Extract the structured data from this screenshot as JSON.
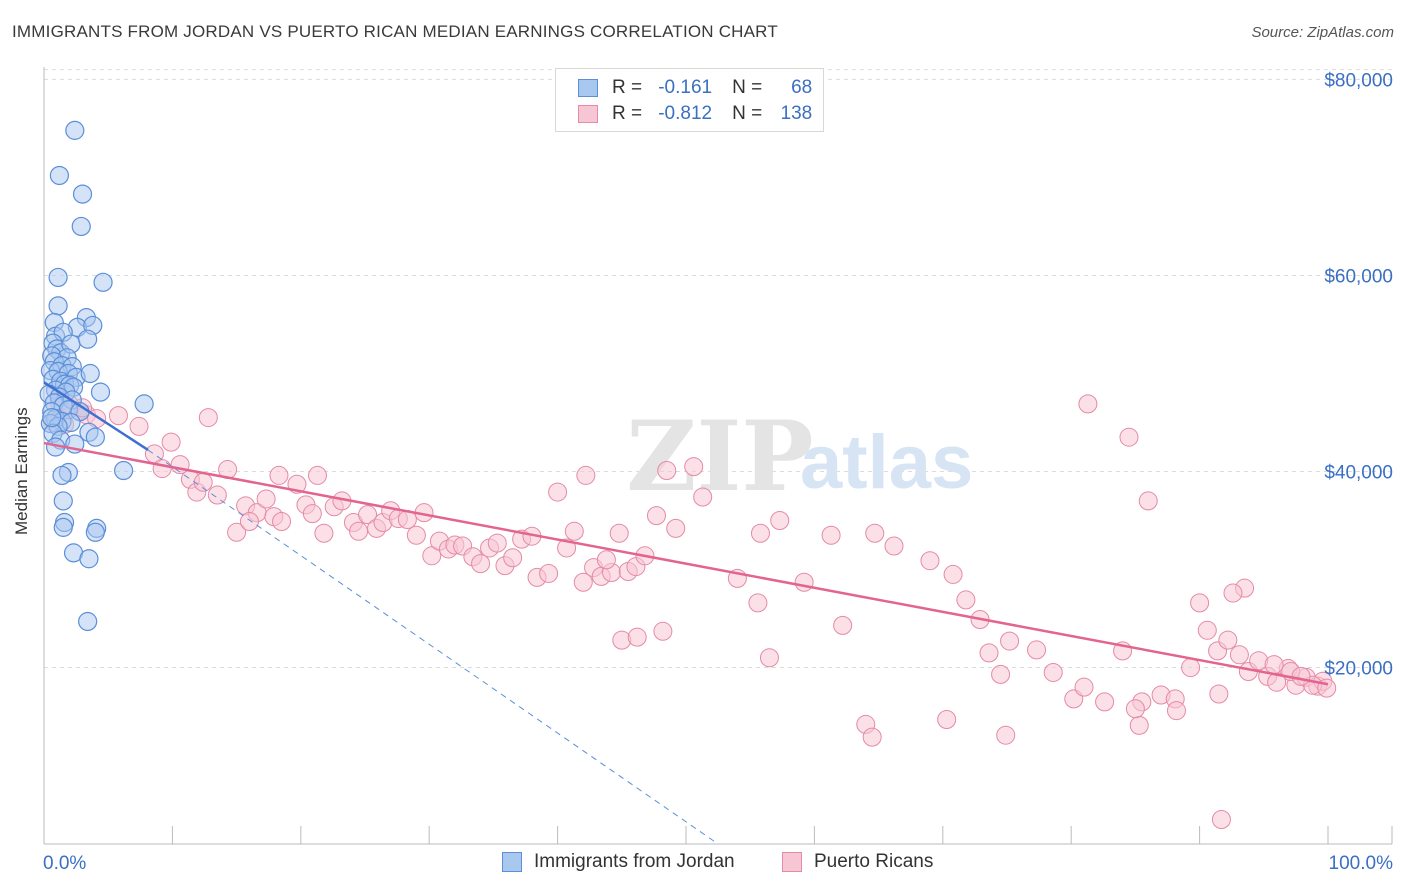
{
  "title": "IMMIGRANTS FROM JORDAN VS PUERTO RICAN MEDIAN EARNINGS CORRELATION CHART",
  "source": "Source: ZipAtlas.com",
  "watermark": {
    "zip": "ZIP",
    "atlas": "atlas"
  },
  "colors": {
    "blue_fill": "#a9c8f0",
    "blue_stroke": "#5b8fd8",
    "blue_line": "#3f6fd0",
    "pink_fill": "#f7c6d5",
    "pink_stroke": "#e58aa7",
    "pink_line": "#e2648f",
    "value_text": "#3a6fc4",
    "grid": "#dcdcdc"
  },
  "legend": {
    "r_label": "R =",
    "n_label": "N =",
    "rows": [
      {
        "series": "Immigrants from Jordan",
        "r": "-0.161",
        "n": "68"
      },
      {
        "series": "Puerto Ricans",
        "r": "-0.812",
        "n": "138"
      }
    ]
  },
  "bottom_legend": [
    "Immigrants from Jordan",
    "Puerto Ricans"
  ],
  "chart_data": {
    "type": "scatter",
    "title": "IMMIGRANTS FROM JORDAN VS PUERTO RICAN MEDIAN EARNINGS CORRELATION CHART",
    "xlabel": "",
    "ylabel": "Median Earnings",
    "xlim": [
      0,
      100
    ],
    "ylim": [
      2000,
      83000
    ],
    "x_tick_labels": [
      "0.0%",
      "100.0%"
    ],
    "y_ticks": [
      {
        "value": 20000,
        "label": "$20,000"
      },
      {
        "value": 40000,
        "label": "$40,000"
      },
      {
        "value": 60000,
        "label": "$60,000"
      },
      {
        "value": 80000,
        "label": "$80,000"
      }
    ],
    "series": [
      {
        "name": "Immigrants from Jordan",
        "color": "blue",
        "trend": {
          "x": [
            0,
            8.1
          ],
          "y": [
            49100,
            42200
          ]
        },
        "trend_extended": {
          "x": [
            8.1,
            52.5
          ],
          "y": [
            42200,
            2000
          ]
        },
        "points": [
          [
            2.4,
            74800
          ],
          [
            1.2,
            70200
          ],
          [
            3.0,
            68300
          ],
          [
            2.9,
            65000
          ],
          [
            1.1,
            59800
          ],
          [
            4.6,
            59300
          ],
          [
            1.1,
            56900
          ],
          [
            3.3,
            55700
          ],
          [
            0.8,
            55200
          ],
          [
            2.6,
            54700
          ],
          [
            3.8,
            54900
          ],
          [
            0.9,
            53800
          ],
          [
            1.5,
            54200
          ],
          [
            0.7,
            53100
          ],
          [
            1.0,
            52500
          ],
          [
            1.3,
            52100
          ],
          [
            2.1,
            53000
          ],
          [
            3.4,
            53500
          ],
          [
            0.6,
            51800
          ],
          [
            1.8,
            51600
          ],
          [
            0.8,
            51200
          ],
          [
            1.4,
            50800
          ],
          [
            2.2,
            50700
          ],
          [
            0.5,
            50300
          ],
          [
            1.1,
            50200
          ],
          [
            1.9,
            50000
          ],
          [
            2.5,
            49600
          ],
          [
            3.6,
            50000
          ],
          [
            0.7,
            49400
          ],
          [
            1.3,
            49200
          ],
          [
            1.6,
            48900
          ],
          [
            2.0,
            48800
          ],
          [
            2.3,
            48600
          ],
          [
            0.9,
            48300
          ],
          [
            1.7,
            48100
          ],
          [
            0.4,
            47900
          ],
          [
            1.2,
            47600
          ],
          [
            4.4,
            48100
          ],
          [
            0.8,
            47000
          ],
          [
            2.2,
            47300
          ],
          [
            1.5,
            46700
          ],
          [
            7.8,
            46900
          ],
          [
            0.6,
            46100
          ],
          [
            1.9,
            46300
          ],
          [
            2.8,
            46100
          ],
          [
            0.9,
            45400
          ],
          [
            1.4,
            45100
          ],
          [
            0.5,
            44900
          ],
          [
            2.1,
            45000
          ],
          [
            1.1,
            44600
          ],
          [
            3.5,
            44000
          ],
          [
            0.7,
            43900
          ],
          [
            4.0,
            43500
          ],
          [
            1.3,
            43200
          ],
          [
            2.4,
            42800
          ],
          [
            0.9,
            42500
          ],
          [
            6.2,
            40100
          ],
          [
            1.9,
            39900
          ],
          [
            1.4,
            39600
          ],
          [
            1.5,
            37000
          ],
          [
            1.6,
            34800
          ],
          [
            4.1,
            34200
          ],
          [
            1.5,
            34300
          ],
          [
            4.0,
            33800
          ],
          [
            2.3,
            31700
          ],
          [
            3.5,
            31100
          ],
          [
            3.4,
            24700
          ],
          [
            0.6,
            45500
          ]
        ]
      },
      {
        "name": "Puerto Ricans",
        "color": "pink",
        "trend": {
          "x": [
            0,
            100
          ],
          "y": [
            42900,
            18300
          ]
        },
        "points": [
          [
            1.2,
            47100
          ],
          [
            2.0,
            46800
          ],
          [
            2.7,
            46200
          ],
          [
            3.3,
            45800
          ],
          [
            4.1,
            45400
          ],
          [
            0.8,
            45000
          ],
          [
            1.6,
            44800
          ],
          [
            3.0,
            46500
          ],
          [
            5.8,
            45700
          ],
          [
            7.4,
            44600
          ],
          [
            9.9,
            43000
          ],
          [
            12.8,
            45500
          ],
          [
            8.6,
            41800
          ],
          [
            9.2,
            40300
          ],
          [
            10.6,
            40700
          ],
          [
            11.4,
            39200
          ],
          [
            11.9,
            37900
          ],
          [
            12.4,
            38900
          ],
          [
            13.5,
            37600
          ],
          [
            14.3,
            40200
          ],
          [
            15.0,
            33800
          ],
          [
            15.7,
            36500
          ],
          [
            16.6,
            35800
          ],
          [
            16.0,
            34900
          ],
          [
            17.3,
            37200
          ],
          [
            17.9,
            35400
          ],
          [
            18.5,
            34900
          ],
          [
            18.3,
            39600
          ],
          [
            19.7,
            38700
          ],
          [
            20.4,
            36600
          ],
          [
            20.9,
            35700
          ],
          [
            21.3,
            39600
          ],
          [
            21.8,
            33700
          ],
          [
            22.6,
            36400
          ],
          [
            23.2,
            37000
          ],
          [
            24.1,
            34800
          ],
          [
            24.5,
            33900
          ],
          [
            25.2,
            35600
          ],
          [
            25.9,
            34200
          ],
          [
            26.4,
            34800
          ],
          [
            27.0,
            36000
          ],
          [
            27.6,
            35200
          ],
          [
            28.3,
            35100
          ],
          [
            29.0,
            33500
          ],
          [
            29.6,
            35800
          ],
          [
            30.2,
            31400
          ],
          [
            30.8,
            32900
          ],
          [
            31.5,
            32100
          ],
          [
            32.0,
            32500
          ],
          [
            32.6,
            32400
          ],
          [
            33.4,
            31300
          ],
          [
            34.0,
            30600
          ],
          [
            34.7,
            32200
          ],
          [
            35.3,
            32700
          ],
          [
            35.9,
            30400
          ],
          [
            36.5,
            31200
          ],
          [
            37.2,
            33100
          ],
          [
            38.0,
            33400
          ],
          [
            38.4,
            29200
          ],
          [
            39.3,
            29600
          ],
          [
            40.0,
            37900
          ],
          [
            40.7,
            32200
          ],
          [
            41.3,
            33900
          ],
          [
            42.0,
            28700
          ],
          [
            42.8,
            30200
          ],
          [
            43.4,
            29300
          ],
          [
            44.2,
            29700
          ],
          [
            44.8,
            33700
          ],
          [
            45.5,
            29800
          ],
          [
            46.1,
            30300
          ],
          [
            46.8,
            31400
          ],
          [
            47.7,
            35500
          ],
          [
            48.5,
            40100
          ],
          [
            49.2,
            34200
          ],
          [
            50.6,
            40500
          ],
          [
            51.3,
            37400
          ],
          [
            54.0,
            29100
          ],
          [
            55.8,
            33700
          ],
          [
            57.3,
            35000
          ],
          [
            42.2,
            39600
          ],
          [
            43.8,
            31000
          ],
          [
            45.0,
            22800
          ],
          [
            46.2,
            23100
          ],
          [
            48.2,
            23700
          ],
          [
            55.6,
            26600
          ],
          [
            56.5,
            21000
          ],
          [
            59.2,
            28700
          ],
          [
            61.3,
            33500
          ],
          [
            62.2,
            24300
          ],
          [
            64.7,
            33700
          ],
          [
            66.2,
            32400
          ],
          [
            69.0,
            30900
          ],
          [
            70.8,
            29500
          ],
          [
            71.8,
            26900
          ],
          [
            72.9,
            24900
          ],
          [
            73.6,
            21500
          ],
          [
            75.2,
            22700
          ],
          [
            74.5,
            19300
          ],
          [
            77.3,
            21800
          ],
          [
            78.6,
            19500
          ],
          [
            80.2,
            16800
          ],
          [
            81.0,
            18000
          ],
          [
            82.6,
            16500
          ],
          [
            84.0,
            21700
          ],
          [
            85.5,
            16500
          ],
          [
            87.0,
            17200
          ],
          [
            88.1,
            16800
          ],
          [
            89.3,
            20000
          ],
          [
            90.0,
            26600
          ],
          [
            90.6,
            23800
          ],
          [
            91.4,
            21700
          ],
          [
            92.2,
            22800
          ],
          [
            93.1,
            21300
          ],
          [
            93.8,
            19600
          ],
          [
            94.6,
            20700
          ],
          [
            95.3,
            19100
          ],
          [
            96.0,
            18500
          ],
          [
            96.9,
            19900
          ],
          [
            97.5,
            18200
          ],
          [
            98.3,
            19000
          ],
          [
            99.2,
            18100
          ],
          [
            99.6,
            18600
          ],
          [
            91.7,
            4500
          ],
          [
            70.3,
            14700
          ],
          [
            74.9,
            13100
          ],
          [
            85.3,
            14100
          ],
          [
            88.2,
            15600
          ],
          [
            64.0,
            14200
          ],
          [
            64.5,
            12900
          ],
          [
            81.3,
            46900
          ],
          [
            84.5,
            43500
          ],
          [
            86.0,
            37000
          ],
          [
            93.5,
            28100
          ],
          [
            92.6,
            27600
          ],
          [
            95.8,
            20300
          ],
          [
            97.1,
            19600
          ],
          [
            98.8,
            18200
          ],
          [
            99.9,
            17900
          ],
          [
            91.5,
            17300
          ],
          [
            97.9,
            19100
          ],
          [
            85.0,
            15800
          ]
        ]
      }
    ]
  }
}
